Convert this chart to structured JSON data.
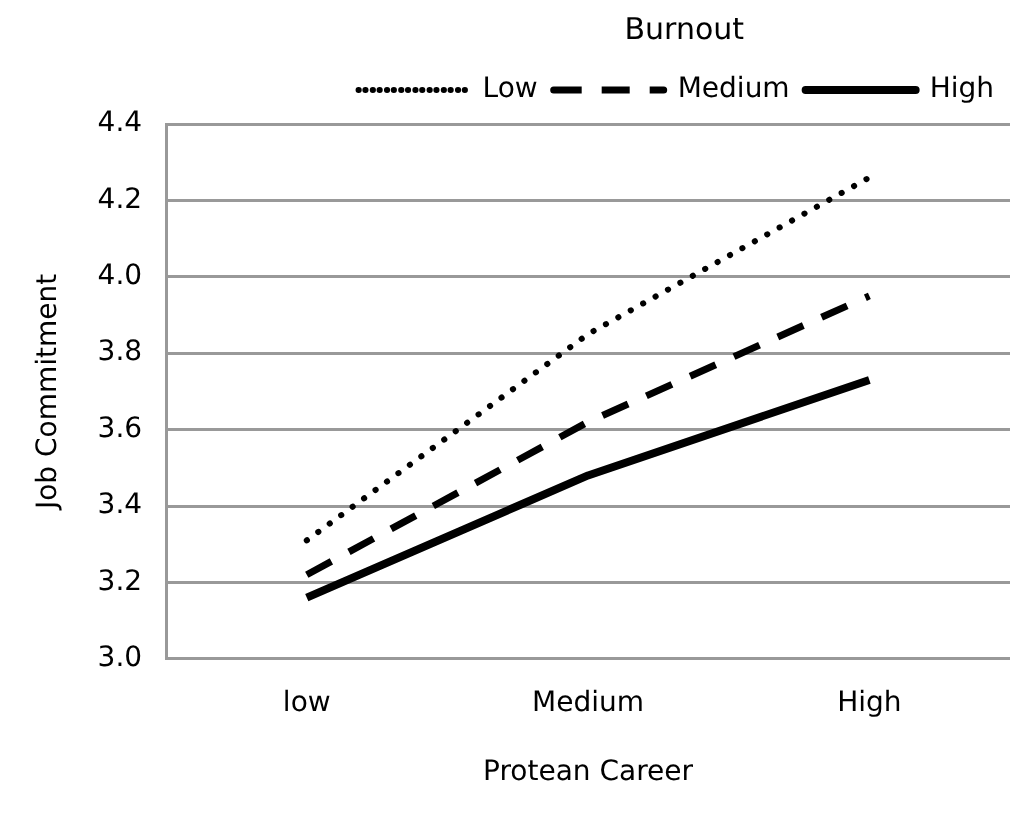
{
  "chart_data": {
    "type": "line",
    "xlabel": "Protean Career",
    "ylabel": "Job Commitment",
    "legend_title": "Burnout",
    "categories": [
      "low",
      "Medium",
      "High"
    ],
    "series": [
      {
        "name": "Low",
        "color": "#000000",
        "line_style": "dotted",
        "values": [
          3.31,
          3.85,
          4.26
        ]
      },
      {
        "name": "Medium",
        "color": "#000000",
        "line_style": "dashed",
        "values": [
          3.22,
          3.62,
          3.95
        ]
      },
      {
        "name": "High",
        "color": "#000000",
        "line_style": "solid",
        "values": [
          3.16,
          3.48,
          3.73
        ]
      }
    ],
    "ylim": [
      3.0,
      4.4
    ],
    "yticks": [
      {
        "value": 3.0,
        "label": "3.0"
      },
      {
        "value": 3.2,
        "label": "3.2"
      },
      {
        "value": 3.4,
        "label": "3.4"
      },
      {
        "value": 3.6,
        "label": "3.6"
      },
      {
        "value": 3.8,
        "label": "3.8"
      },
      {
        "value": 4.0,
        "label": "4.0"
      },
      {
        "value": 4.2,
        "label": "4.2"
      },
      {
        "value": 4.4,
        "label": "4.4"
      }
    ],
    "grid": "y",
    "legend": "top",
    "marker": "none"
  }
}
